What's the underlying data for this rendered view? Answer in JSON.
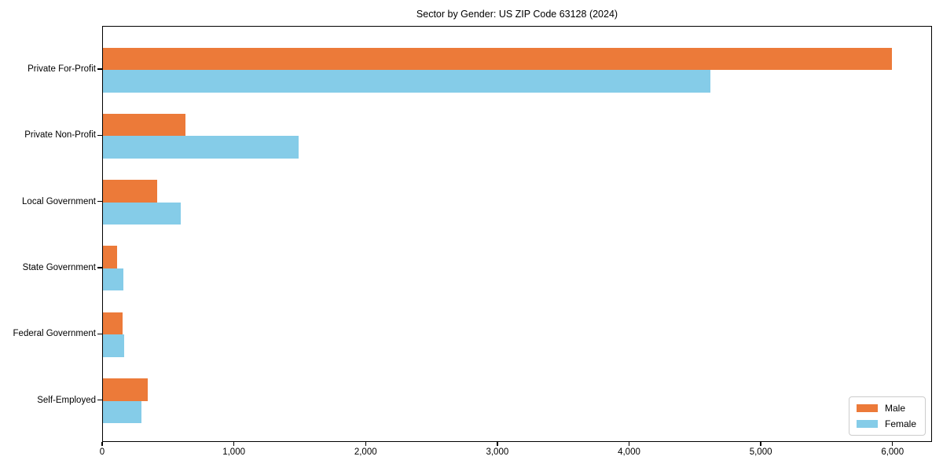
{
  "chart_data": {
    "type": "bar",
    "orientation": "horizontal",
    "title": "Sector by Gender: US ZIP Code 63128 (2024)",
    "categories": [
      "Private For-Profit",
      "Private Non-Profit",
      "Local Government",
      "State Government",
      "Federal Government",
      "Self-Employed"
    ],
    "series": [
      {
        "name": "Male",
        "color": "#ec7a39",
        "values": [
          6000,
          630,
          415,
          105,
          150,
          340
        ]
      },
      {
        "name": "Female",
        "color": "#85cce8",
        "values": [
          4620,
          1490,
          590,
          155,
          160,
          295
        ]
      }
    ],
    "xlabel": "",
    "ylabel": "",
    "xlim": [
      0,
      6300
    ],
    "x_ticks": [
      0,
      1000,
      2000,
      3000,
      4000,
      5000,
      6000
    ],
    "x_tick_labels": [
      "0",
      "1,000",
      "2,000",
      "3,000",
      "4,000",
      "5,000",
      "6,000"
    ],
    "grid": false,
    "legend_position": "lower right",
    "legend_labels": [
      "Male",
      "Female"
    ]
  }
}
